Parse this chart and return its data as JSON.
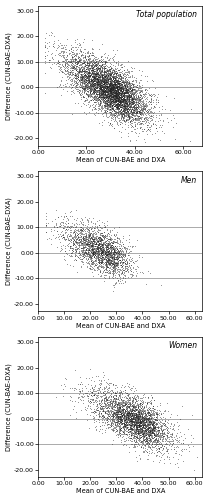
{
  "panels": [
    {
      "label": "Total population",
      "n_points": 4500,
      "mean_mu": 28,
      "mean_sigma": 9,
      "diff_slope": -0.52,
      "diff_intercept": 14.5,
      "diff_noise": 4.8,
      "xlim": [
        0,
        68
      ],
      "ylim": [
        -23,
        32
      ],
      "xticks": [
        0,
        20,
        40,
        60
      ],
      "yticks": [
        -20,
        -10,
        0,
        10,
        20,
        30
      ],
      "xticklabels": [
        "0.00",
        "20.00",
        "40.00",
        "60.00"
      ],
      "yticklabels": [
        "-20.00",
        "-10.00",
        "0.00",
        "10.00",
        "20.00",
        "30.00"
      ],
      "hlines": [
        10,
        0,
        -10
      ],
      "seed": 42
    },
    {
      "label": "Men",
      "n_points": 1800,
      "mean_mu": 22,
      "mean_sigma": 7,
      "diff_slope": -0.45,
      "diff_intercept": 11.5,
      "diff_noise": 4.2,
      "xlim": [
        0,
        63
      ],
      "ylim": [
        -23,
        32
      ],
      "xticks": [
        0,
        10,
        20,
        30,
        40,
        50,
        60
      ],
      "yticks": [
        -20,
        -10,
        0,
        10,
        20,
        30
      ],
      "xticklabels": [
        "0.00",
        "10.00",
        "20.00",
        "30.00",
        "40.00",
        "50.00",
        "60.00"
      ],
      "yticklabels": [
        "-20.00",
        "-10.00",
        "0.00",
        "10.00",
        "20.00",
        "30.00"
      ],
      "hlines": [
        10,
        0,
        -10
      ],
      "seed": 123
    },
    {
      "label": "Women",
      "n_points": 2700,
      "mean_mu": 35,
      "mean_sigma": 8,
      "diff_slope": -0.48,
      "diff_intercept": 17.0,
      "diff_noise": 4.5,
      "xlim": [
        0,
        63
      ],
      "ylim": [
        -23,
        32
      ],
      "xticks": [
        0,
        10,
        20,
        30,
        40,
        50,
        60
      ],
      "yticks": [
        -20,
        -10,
        0,
        10,
        20,
        30
      ],
      "xticklabels": [
        "0.00",
        "10.00",
        "20.00",
        "30.00",
        "40.00",
        "50.00",
        "60.00"
      ],
      "yticklabels": [
        "-20.00",
        "-10.00",
        "0.00",
        "10.00",
        "20.00",
        "30.00"
      ],
      "hlines": [
        10,
        0,
        -10
      ],
      "seed": 999
    }
  ],
  "xlabel": "Mean of CUN-BAE and DXA",
  "ylabel": "Difference (CUN-BAE-DXA)",
  "dot_color": "#222222",
  "dot_size": 0.5,
  "dot_alpha": 0.35,
  "hline_color": "#aaaaaa",
  "hline_lw": 0.7,
  "background_color": "#ffffff",
  "label_fontsize": 4.8,
  "tick_fontsize": 4.5,
  "annotation_fontsize": 5.5,
  "spine_lw": 0.5
}
